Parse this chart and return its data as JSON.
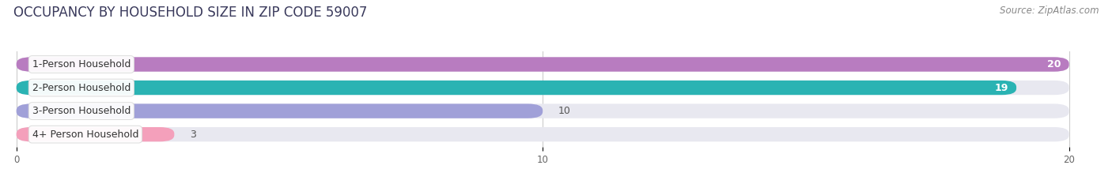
{
  "title": "OCCUPANCY BY HOUSEHOLD SIZE IN ZIP CODE 59007",
  "source": "Source: ZipAtlas.com",
  "categories": [
    "1-Person Household",
    "2-Person Household",
    "3-Person Household",
    "4+ Person Household"
  ],
  "values": [
    20,
    19,
    10,
    3
  ],
  "bar_colors": [
    "#b87cc0",
    "#2ab3b3",
    "#a0a0d8",
    "#f4a0bb"
  ],
  "bar_bg_color": "#e8e8f0",
  "xlim": [
    -0.05,
    20
  ],
  "xticks": [
    0,
    10,
    20
  ],
  "background_color": "#ffffff",
  "title_fontsize": 12,
  "source_fontsize": 8.5,
  "bar_label_fontsize": 9,
  "category_fontsize": 9
}
